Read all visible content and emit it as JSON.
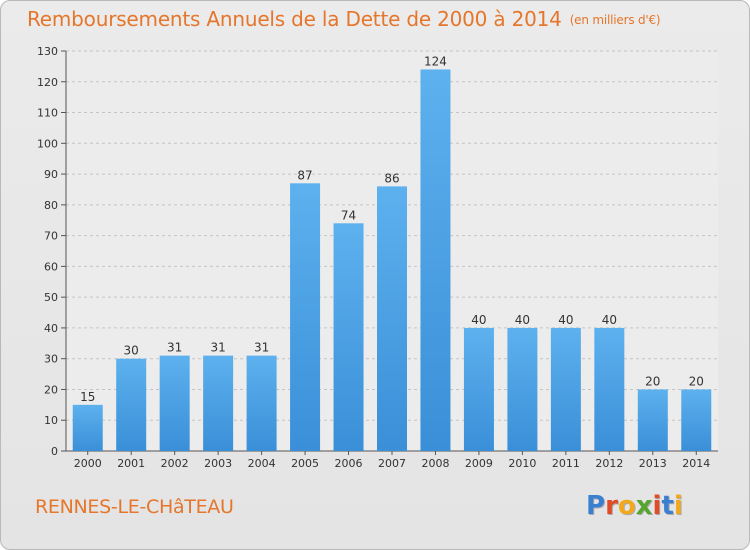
{
  "title": "Remboursements Annuels de la Dette de 2000 à 2014",
  "unit": "(en milliers d'€)",
  "commune": "RENNES-LE-CHâTEAU",
  "logo": {
    "text": "Proxiti",
    "colors": [
      "#3a7fd0",
      "#e14b2a",
      "#f2a81c",
      "#56a531",
      "#e14b2a",
      "#3a7fd0",
      "#f2a81c"
    ]
  },
  "chart_data": {
    "type": "bar",
    "title": "Remboursements Annuels de la Dette de 2000 à 2014",
    "categories": [
      "2000",
      "2001",
      "2002",
      "2003",
      "2004",
      "2005",
      "2006",
      "2007",
      "2008",
      "2009",
      "2010",
      "2011",
      "2012",
      "2013",
      "2014"
    ],
    "values": [
      15,
      30,
      31,
      31,
      31,
      87,
      74,
      86,
      124,
      40,
      40,
      40,
      40,
      20,
      20
    ],
    "ylim": [
      0,
      130
    ],
    "yticks": [
      0,
      10,
      20,
      30,
      40,
      50,
      60,
      70,
      80,
      90,
      100,
      110,
      120,
      130
    ],
    "grid": true,
    "bar_color": "#3a8fd8",
    "title_color": "#e5762b"
  }
}
